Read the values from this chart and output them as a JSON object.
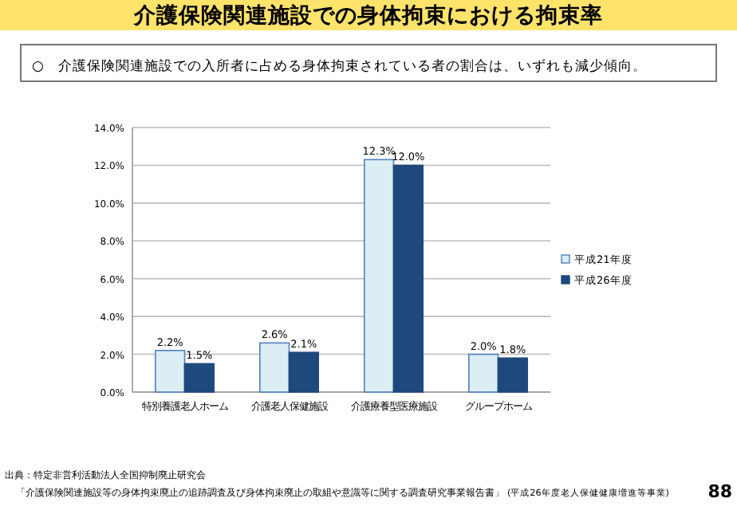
{
  "chart_data": {
    "type": "bar",
    "title": "介護保険関連施設での身体拘束における拘束率",
    "subtitle": "○　介護保険関連施設での入所者に占める身体拘束されている者の割合は、いずれも減少傾向。",
    "categories": [
      "特別養護老人ホーム",
      "介護老人保健施設",
      "介護療養型医療施設",
      "グループホーム"
    ],
    "series": [
      {
        "name": "平成21年度",
        "color": "#dbeef4",
        "values": [
          2.2,
          2.6,
          12.3,
          2.0
        ],
        "value_labels": [
          "2.2%",
          "2.6%",
          "12.3%",
          "2.0%"
        ]
      },
      {
        "name": "平成26年度",
        "color": "#1f497d",
        "values": [
          1.5,
          2.1,
          12.0,
          1.8
        ],
        "value_labels": [
          "1.5%",
          "2.1%",
          "12.0%",
          "1.8%"
        ]
      }
    ],
    "ylim": [
      0,
      14
    ],
    "yticks": [
      {
        "value": 0,
        "label": "0.0%"
      },
      {
        "value": 2,
        "label": "2.0%"
      },
      {
        "value": 4,
        "label": "4.0%"
      },
      {
        "value": 6,
        "label": "6.0%"
      },
      {
        "value": 8,
        "label": "8.0%"
      },
      {
        "value": 10,
        "label": "10.0%"
      },
      {
        "value": 12,
        "label": "12.0%"
      },
      {
        "value": 14,
        "label": "14.0%"
      }
    ],
    "grid": "y",
    "legend": "right",
    "annotations": [
      "出典：特定非営利活動法人全国抑制廃止研究会",
      "「介護保険関連施設等の身体拘束廃止の追跡調査及び身体拘束廃止の取組や意識等に関する調査研究事業報告書」",
      "(平成26年度老人保健健康増進等事業)",
      "88"
    ]
  }
}
